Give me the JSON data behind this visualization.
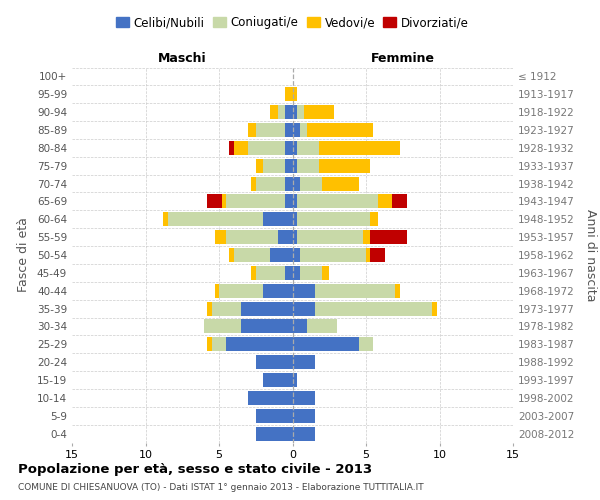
{
  "age_groups_bottom_to_top": [
    "0-4",
    "5-9",
    "10-14",
    "15-19",
    "20-24",
    "25-29",
    "30-34",
    "35-39",
    "40-44",
    "45-49",
    "50-54",
    "55-59",
    "60-64",
    "65-69",
    "70-74",
    "75-79",
    "80-84",
    "85-89",
    "90-94",
    "95-99",
    "100+"
  ],
  "birth_years_bottom_to_top": [
    "2008-2012",
    "2003-2007",
    "1998-2002",
    "1993-1997",
    "1988-1992",
    "1983-1987",
    "1978-1982",
    "1973-1977",
    "1968-1972",
    "1963-1967",
    "1958-1962",
    "1953-1957",
    "1948-1952",
    "1943-1947",
    "1938-1942",
    "1933-1937",
    "1928-1932",
    "1923-1927",
    "1918-1922",
    "1913-1917",
    "≤ 1912"
  ],
  "males_celibe": [
    2.5,
    2.5,
    3.0,
    2.0,
    2.5,
    4.5,
    3.5,
    3.5,
    2.0,
    0.5,
    1.5,
    1.0,
    2.0,
    0.5,
    0.5,
    0.5,
    0.5,
    0.5,
    0.5,
    0,
    0
  ],
  "males_coniugato": [
    0,
    0,
    0,
    0,
    0,
    1.0,
    2.5,
    2.0,
    3.0,
    2.0,
    2.5,
    3.5,
    6.5,
    4.0,
    2.0,
    1.5,
    2.5,
    2.0,
    0.5,
    0,
    0
  ],
  "males_vedovo": [
    0,
    0,
    0,
    0,
    0,
    0.3,
    0,
    0.3,
    0.3,
    0.3,
    0.3,
    0.8,
    0.3,
    0.3,
    0.3,
    0.5,
    1.0,
    0.5,
    0.5,
    0.5,
    0
  ],
  "males_divorziato": [
    0,
    0,
    0,
    0,
    0,
    0,
    0,
    0,
    0,
    0,
    0,
    0,
    0,
    1.0,
    0,
    0,
    0.3,
    0,
    0,
    0,
    0
  ],
  "females_nubile": [
    1.5,
    1.5,
    1.5,
    0.3,
    1.5,
    4.5,
    1.0,
    1.5,
    1.5,
    0.5,
    0.5,
    0.3,
    0.3,
    0.3,
    0.5,
    0.3,
    0.3,
    0.5,
    0.3,
    0,
    0
  ],
  "females_coniugata": [
    0,
    0,
    0,
    0,
    0,
    1.0,
    2.0,
    8.0,
    5.5,
    1.5,
    4.5,
    4.5,
    5.0,
    5.5,
    1.5,
    1.5,
    1.5,
    0.5,
    0.5,
    0,
    0
  ],
  "females_vedova": [
    0,
    0,
    0,
    0,
    0,
    0,
    0,
    0.3,
    0.3,
    0.5,
    0.3,
    0.5,
    0.5,
    1.0,
    2.5,
    3.5,
    5.5,
    4.5,
    2.0,
    0.3,
    0
  ],
  "females_divorziata": [
    0,
    0,
    0,
    0,
    0,
    0,
    0,
    0,
    0,
    0,
    1.0,
    2.5,
    0,
    1.0,
    0,
    0,
    0,
    0,
    0,
    0,
    0
  ],
  "color_celibe": "#4472c4",
  "color_coniugato": "#c8d9a8",
  "color_vedovo": "#ffc000",
  "color_divorziato": "#c00000",
  "xlim": 15,
  "title": "Popolazione per età, sesso e stato civile - 2013",
  "subtitle": "COMUNE DI CHIESANUOVA (TO) - Dati ISTAT 1° gennaio 2013 - Elaborazione TUTTITALIA.IT",
  "ylabel_left": "Fasce di età",
  "ylabel_right": "Anni di nascita",
  "label_maschi": "Maschi",
  "label_femmine": "Femmine",
  "legend_labels": [
    "Celibi/Nubili",
    "Coniugati/e",
    "Vedovi/e",
    "Divorziati/e"
  ],
  "background_color": "#ffffff",
  "grid_color": "#cccccc",
  "center_line_color": "#aaaaaa"
}
